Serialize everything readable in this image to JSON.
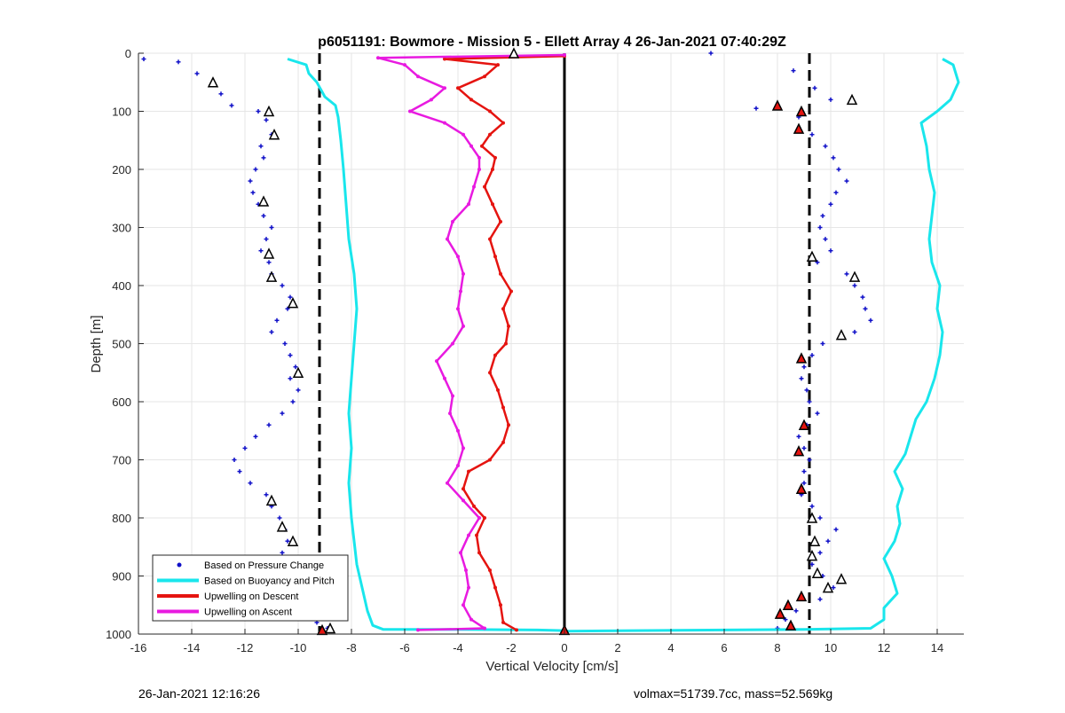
{
  "footer": {
    "timestamp": "26-Jan-2021 12:16:26",
    "info": "volmax=51739.7cc, mass=52.569kg"
  },
  "chart_data": {
    "type": "scatter",
    "title": "p6051191: Bowmore - Mission 5 - Ellett Array 4 26-Jan-2021 07:40:29Z",
    "xlabel": "Vertical Velocity [cm/s]",
    "ylabel": "Depth [m]",
    "xlim": [
      -16,
      15
    ],
    "ylim": [
      0,
      1000
    ],
    "y_reversed": true,
    "xticks": [
      -16,
      -14,
      -12,
      -10,
      -8,
      -6,
      -4,
      -2,
      0,
      2,
      4,
      6,
      8,
      10,
      12,
      14
    ],
    "yticks": [
      0,
      100,
      200,
      300,
      400,
      500,
      600,
      700,
      800,
      900,
      1000
    ],
    "grid": true,
    "legend_position": "bottom-left",
    "reference_lines": [
      {
        "x": -9.2,
        "style": "dashed",
        "color": "#000000"
      },
      {
        "x": 9.2,
        "style": "dashed",
        "color": "#000000"
      },
      {
        "x": 0,
        "style": "solid",
        "color": "#000000"
      }
    ],
    "series": [
      {
        "name": "Based on Pressure Change",
        "type": "scatter",
        "color": "#1010c8",
        "marker": "plus",
        "points_left": [
          [
            -15.8,
            10
          ],
          [
            -14.5,
            15
          ],
          [
            -13.8,
            35
          ],
          [
            -13.2,
            55
          ],
          [
            -12.9,
            70
          ],
          [
            -12.5,
            90
          ],
          [
            -11.5,
            100
          ],
          [
            -11.2,
            115
          ],
          [
            -11.0,
            140
          ],
          [
            -11.4,
            160
          ],
          [
            -11.3,
            180
          ],
          [
            -11.6,
            200
          ],
          [
            -11.8,
            220
          ],
          [
            -11.7,
            240
          ],
          [
            -11.5,
            260
          ],
          [
            -11.3,
            280
          ],
          [
            -11.0,
            300
          ],
          [
            -11.2,
            320
          ],
          [
            -11.4,
            340
          ],
          [
            -11.1,
            360
          ],
          [
            -11.0,
            380
          ],
          [
            -10.6,
            400
          ],
          [
            -10.3,
            420
          ],
          [
            -10.4,
            440
          ],
          [
            -10.8,
            460
          ],
          [
            -11.0,
            480
          ],
          [
            -10.5,
            500
          ],
          [
            -10.3,
            520
          ],
          [
            -10.1,
            540
          ],
          [
            -10.3,
            560
          ],
          [
            -10.0,
            580
          ],
          [
            -10.2,
            600
          ],
          [
            -10.6,
            620
          ],
          [
            -11.1,
            640
          ],
          [
            -11.6,
            660
          ],
          [
            -12.0,
            680
          ],
          [
            -12.4,
            700
          ],
          [
            -12.2,
            720
          ],
          [
            -11.8,
            740
          ],
          [
            -11.2,
            760
          ],
          [
            -11.0,
            780
          ],
          [
            -10.7,
            800
          ],
          [
            -10.5,
            820
          ],
          [
            -10.4,
            840
          ],
          [
            -10.6,
            860
          ],
          [
            -10.4,
            880
          ],
          [
            -10.2,
            900
          ],
          [
            -10.0,
            920
          ],
          [
            -9.8,
            940
          ],
          [
            -9.6,
            960
          ],
          [
            -9.3,
            980
          ],
          [
            -8.9,
            990
          ]
        ],
        "points_right": [
          [
            5.5,
            0
          ],
          [
            8.6,
            30
          ],
          [
            9.4,
            60
          ],
          [
            10.0,
            80
          ],
          [
            7.2,
            95
          ],
          [
            8.8,
            110
          ],
          [
            9.3,
            140
          ],
          [
            9.8,
            160
          ],
          [
            10.1,
            180
          ],
          [
            10.3,
            200
          ],
          [
            10.6,
            220
          ],
          [
            10.2,
            240
          ],
          [
            10.0,
            260
          ],
          [
            9.7,
            280
          ],
          [
            9.6,
            300
          ],
          [
            9.8,
            320
          ],
          [
            10.0,
            340
          ],
          [
            9.5,
            360
          ],
          [
            10.6,
            380
          ],
          [
            10.9,
            400
          ],
          [
            11.2,
            420
          ],
          [
            11.3,
            440
          ],
          [
            11.5,
            460
          ],
          [
            10.9,
            480
          ],
          [
            9.7,
            500
          ],
          [
            9.3,
            520
          ],
          [
            9.0,
            540
          ],
          [
            8.9,
            560
          ],
          [
            9.1,
            580
          ],
          [
            9.2,
            600
          ],
          [
            9.5,
            620
          ],
          [
            9.1,
            640
          ],
          [
            8.8,
            660
          ],
          [
            9.0,
            680
          ],
          [
            9.2,
            700
          ],
          [
            9.0,
            720
          ],
          [
            9.0,
            740
          ],
          [
            8.9,
            760
          ],
          [
            9.3,
            780
          ],
          [
            9.6,
            800
          ],
          [
            10.2,
            820
          ],
          [
            9.9,
            840
          ],
          [
            9.6,
            860
          ],
          [
            9.3,
            880
          ],
          [
            9.7,
            900
          ],
          [
            10.1,
            920
          ],
          [
            9.6,
            940
          ],
          [
            8.7,
            960
          ],
          [
            8.3,
            975
          ],
          [
            8.0,
            990
          ]
        ]
      },
      {
        "name": "Based on Buoyancy and Pitch",
        "type": "line",
        "color": "#19e6ec",
        "points_left": [
          [
            -10.4,
            10
          ],
          [
            -9.7,
            20
          ],
          [
            -9.6,
            35
          ],
          [
            -9.3,
            50
          ],
          [
            -9.0,
            75
          ],
          [
            -8.6,
            90
          ],
          [
            -8.5,
            110
          ],
          [
            -8.4,
            150
          ],
          [
            -8.3,
            200
          ],
          [
            -8.2,
            260
          ],
          [
            -8.1,
            320
          ],
          [
            -7.9,
            380
          ],
          [
            -7.8,
            440
          ],
          [
            -7.9,
            500
          ],
          [
            -8.0,
            560
          ],
          [
            -8.1,
            620
          ],
          [
            -8.0,
            680
          ],
          [
            -8.1,
            740
          ],
          [
            -8.0,
            800
          ],
          [
            -7.9,
            840
          ],
          [
            -7.8,
            880
          ],
          [
            -7.6,
            920
          ],
          [
            -7.4,
            960
          ],
          [
            -7.2,
            985
          ],
          [
            -6.8,
            992
          ],
          [
            -4.0,
            992
          ],
          [
            -1.0,
            993
          ],
          [
            0,
            994
          ]
        ],
        "points_right": [
          [
            0,
            995
          ],
          [
            2.5,
            994
          ],
          [
            6.0,
            993
          ],
          [
            9.0,
            992
          ],
          [
            11.5,
            990
          ],
          [
            12.0,
            975
          ],
          [
            12.0,
            955
          ],
          [
            12.5,
            930
          ],
          [
            12.3,
            900
          ],
          [
            12.0,
            870
          ],
          [
            12.4,
            840
          ],
          [
            12.6,
            810
          ],
          [
            12.5,
            780
          ],
          [
            12.7,
            750
          ],
          [
            12.4,
            720
          ],
          [
            12.8,
            690
          ],
          [
            13.0,
            660
          ],
          [
            13.2,
            630
          ],
          [
            13.6,
            600
          ],
          [
            13.9,
            560
          ],
          [
            14.1,
            520
          ],
          [
            14.2,
            480
          ],
          [
            14.0,
            440
          ],
          [
            14.1,
            400
          ],
          [
            13.8,
            360
          ],
          [
            13.7,
            320
          ],
          [
            13.8,
            280
          ],
          [
            13.9,
            240
          ],
          [
            13.7,
            200
          ],
          [
            13.6,
            160
          ],
          [
            13.4,
            120
          ],
          [
            14.0,
            100
          ],
          [
            14.5,
            80
          ],
          [
            14.8,
            50
          ],
          [
            14.6,
            20
          ],
          [
            14.2,
            10
          ]
        ]
      },
      {
        "name": "Upwelling on Descent",
        "type": "line",
        "color": "#e51410",
        "points": [
          [
            0,
            5
          ],
          [
            -4.5,
            10
          ],
          [
            -2.5,
            20
          ],
          [
            -3.0,
            40
          ],
          [
            -4.0,
            60
          ],
          [
            -3.5,
            80
          ],
          [
            -2.8,
            100
          ],
          [
            -2.3,
            120
          ],
          [
            -2.8,
            140
          ],
          [
            -3.1,
            160
          ],
          [
            -2.6,
            180
          ],
          [
            -2.7,
            200
          ],
          [
            -3.0,
            230
          ],
          [
            -2.7,
            260
          ],
          [
            -2.4,
            290
          ],
          [
            -2.8,
            320
          ],
          [
            -2.6,
            350
          ],
          [
            -2.4,
            380
          ],
          [
            -2.0,
            410
          ],
          [
            -2.3,
            440
          ],
          [
            -2.1,
            470
          ],
          [
            -2.2,
            500
          ],
          [
            -2.6,
            520
          ],
          [
            -2.8,
            550
          ],
          [
            -2.5,
            580
          ],
          [
            -2.3,
            610
          ],
          [
            -2.1,
            640
          ],
          [
            -2.3,
            670
          ],
          [
            -2.8,
            700
          ],
          [
            -3.6,
            720
          ],
          [
            -3.8,
            750
          ],
          [
            -3.4,
            780
          ],
          [
            -3.0,
            800
          ],
          [
            -3.3,
            830
          ],
          [
            -3.2,
            860
          ],
          [
            -2.8,
            890
          ],
          [
            -2.6,
            920
          ],
          [
            -2.4,
            950
          ],
          [
            -2.3,
            980
          ],
          [
            -1.8,
            993
          ]
        ]
      },
      {
        "name": "Upwelling on Ascent",
        "type": "line",
        "color": "#e81ae0",
        "points": [
          [
            0,
            3
          ],
          [
            -7.0,
            8
          ],
          [
            -6.0,
            20
          ],
          [
            -5.5,
            40
          ],
          [
            -4.5,
            60
          ],
          [
            -5.0,
            80
          ],
          [
            -5.8,
            100
          ],
          [
            -4.5,
            120
          ],
          [
            -3.8,
            140
          ],
          [
            -3.5,
            160
          ],
          [
            -3.2,
            180
          ],
          [
            -3.2,
            200
          ],
          [
            -3.4,
            230
          ],
          [
            -3.6,
            260
          ],
          [
            -4.2,
            290
          ],
          [
            -4.4,
            320
          ],
          [
            -4.0,
            350
          ],
          [
            -3.8,
            380
          ],
          [
            -3.9,
            410
          ],
          [
            -4.0,
            440
          ],
          [
            -3.8,
            470
          ],
          [
            -4.2,
            500
          ],
          [
            -4.8,
            530
          ],
          [
            -4.5,
            560
          ],
          [
            -4.2,
            590
          ],
          [
            -4.3,
            620
          ],
          [
            -4.0,
            650
          ],
          [
            -3.8,
            680
          ],
          [
            -4.0,
            710
          ],
          [
            -4.4,
            740
          ],
          [
            -3.8,
            770
          ],
          [
            -3.2,
            800
          ],
          [
            -3.6,
            830
          ],
          [
            -3.9,
            860
          ],
          [
            -3.7,
            890
          ],
          [
            -3.6,
            920
          ],
          [
            -3.8,
            950
          ],
          [
            -3.5,
            975
          ],
          [
            -3.0,
            990
          ],
          [
            -5.5,
            993
          ]
        ]
      },
      {
        "name": "triangles-black-outline",
        "type": "scatter",
        "marker": "triangle",
        "color": "#000000",
        "points": [
          [
            -13.2,
            50
          ],
          [
            -11.1,
            100
          ],
          [
            -10.9,
            140
          ],
          [
            -11.3,
            255
          ],
          [
            -11.1,
            345
          ],
          [
            -11.0,
            385
          ],
          [
            -10.2,
            430
          ],
          [
            -10.0,
            550
          ],
          [
            -11.0,
            770
          ],
          [
            -10.6,
            815
          ],
          [
            -10.2,
            840
          ],
          [
            -9.7,
            965
          ],
          [
            -8.8,
            990
          ],
          [
            10.8,
            80
          ],
          [
            9.3,
            350
          ],
          [
            10.9,
            385
          ],
          [
            10.4,
            485
          ],
          [
            9.3,
            800
          ],
          [
            9.4,
            840
          ],
          [
            9.3,
            865
          ],
          [
            9.5,
            895
          ],
          [
            10.4,
            905
          ],
          [
            9.9,
            920
          ],
          [
            -1.9,
            0
          ]
        ]
      },
      {
        "name": "triangles-red-filled",
        "type": "scatter",
        "marker": "triangle",
        "color": "#e51410",
        "points": [
          [
            8.0,
            90
          ],
          [
            8.9,
            100
          ],
          [
            8.8,
            130
          ],
          [
            8.9,
            525
          ],
          [
            9.0,
            640
          ],
          [
            8.8,
            685
          ],
          [
            8.9,
            750
          ],
          [
            8.9,
            935
          ],
          [
            8.4,
            950
          ],
          [
            8.1,
            965
          ],
          [
            8.5,
            985
          ],
          [
            -9.1,
            993
          ],
          [
            0,
            993
          ]
        ]
      }
    ]
  }
}
